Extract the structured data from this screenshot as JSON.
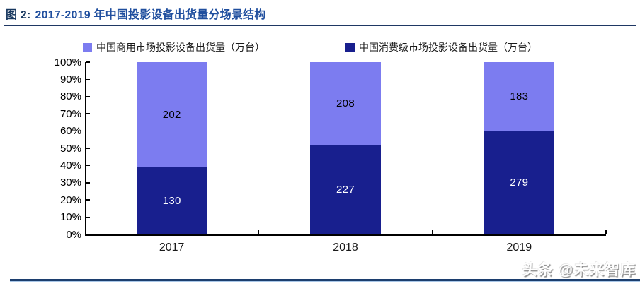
{
  "figure": {
    "title_prefix": "图 2:",
    "title_text": "2017-2019 年中国投影设备出货量分场景结构",
    "watermark": "头条 @未来智库"
  },
  "colors": {
    "title_prefix": "#17375E",
    "title_text": "#1F4E9E",
    "rule_top": "#1F3864",
    "rule_bottom": "#1C3E6E",
    "commercial_series": "#7C7CF0",
    "consumer_series": "#181F8E",
    "axis": "#000000",
    "value_label_on_light": "#000000",
    "value_label_on_dark": "#FFFFFF"
  },
  "chart_data": {
    "type": "bar",
    "stacking": "percent",
    "title": "2017-2019 年中国投影设备出货量分场景结构",
    "categories": [
      "2017",
      "2018",
      "2019"
    ],
    "series": [
      {
        "name": "中国商用市场投影设备出货量（万台）",
        "color": "#7C7CF0",
        "stack_position": "top",
        "values": [
          202,
          208,
          183
        ]
      },
      {
        "name": "中国消费级市场投影设备出货量（万台）",
        "color": "#181F8E",
        "stack_position": "bottom",
        "values": [
          130,
          227,
          279
        ]
      }
    ],
    "xlabel": "",
    "ylabel": "",
    "y_axis": {
      "min": 0,
      "max": 100,
      "step": 10,
      "format": "percent",
      "tick_labels": [
        "0%",
        "10%",
        "20%",
        "30%",
        "40%",
        "50%",
        "60%",
        "70%",
        "80%",
        "90%",
        "100%"
      ]
    },
    "grid": false,
    "legend_position": "top"
  }
}
